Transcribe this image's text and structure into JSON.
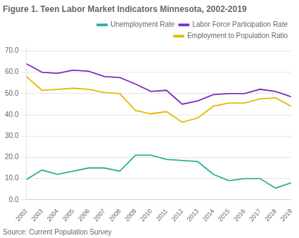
{
  "chart_data": {
    "type": "line",
    "title": "Figure 1. Teen Labor Market Indicators Minnesota, 2002-2019",
    "annotation": "Source: Current Population Survey",
    "x": [
      2002,
      2003,
      2004,
      2005,
      2006,
      2007,
      2008,
      2009,
      2010,
      2011,
      2012,
      2013,
      2014,
      2015,
      2016,
      2017,
      2018,
      2019
    ],
    "series": [
      {
        "name": "Unemployment Rate",
        "color": "#2BAE9A",
        "values": [
          9.5,
          14.0,
          12.0,
          13.5,
          15.0,
          15.0,
          13.5,
          21.0,
          21.0,
          19.0,
          18.5,
          18.0,
          12.0,
          9.0,
          10.0,
          10.0,
          5.5,
          8.0
        ]
      },
      {
        "name": "Labor Force Participation Rate",
        "color": "#7B2FBE",
        "values": [
          64.0,
          60.0,
          59.5,
          61.0,
          60.5,
          58.0,
          57.5,
          54.5,
          51.0,
          51.5,
          45.0,
          46.5,
          49.5,
          50.0,
          50.0,
          52.0,
          51.0,
          48.5
        ]
      },
      {
        "name": "Employment to Population Ratio",
        "color": "#E6B800",
        "values": [
          58.0,
          51.5,
          52.0,
          52.5,
          52.0,
          50.5,
          50.0,
          42.0,
          40.5,
          41.5,
          36.5,
          38.5,
          44.0,
          45.5,
          45.5,
          47.5,
          48.0,
          44.0
        ]
      }
    ],
    "xlim": [
      2002,
      2019
    ],
    "xticks": [
      2002,
      2003,
      2004,
      2005,
      2006,
      2007,
      2008,
      2009,
      2010,
      2011,
      2012,
      2013,
      2014,
      2015,
      2016,
      2017,
      2018,
      2019
    ],
    "ylim": [
      0.0,
      72.0
    ],
    "yticks": [
      {
        "value": 0,
        "label": "0.0"
      },
      {
        "value": 10,
        "label": "10.0"
      },
      {
        "value": 20,
        "label": "20.0"
      },
      {
        "value": 30,
        "label": "30.0"
      },
      {
        "value": 40,
        "label": "40.0"
      },
      {
        "value": 50,
        "label": "50.0"
      },
      {
        "value": 60,
        "label": "60.0"
      },
      {
        "value": 70,
        "label": "70.0"
      }
    ],
    "grid": true,
    "legend": "upper right"
  }
}
